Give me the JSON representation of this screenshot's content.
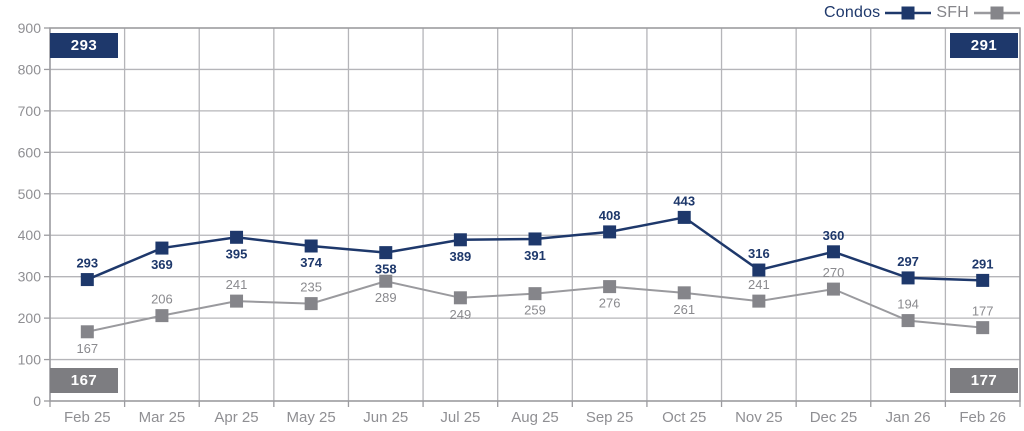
{
  "legend": {
    "position": "top-right",
    "items": [
      {
        "label": "Condos",
        "color": "#1e386b"
      },
      {
        "label": "SFH",
        "color": "#85858a"
      }
    ]
  },
  "badges": {
    "condos_first": {
      "value": "293",
      "color": "#1e386b"
    },
    "condos_last": {
      "value": "291",
      "color": "#1e386b"
    },
    "sfh_first": {
      "value": "167",
      "color": "#7d7d81"
    },
    "sfh_last": {
      "value": "177",
      "color": "#7d7d81"
    }
  },
  "chart_data": {
    "type": "line",
    "title": "",
    "xlabel": "",
    "ylabel": "",
    "categories": [
      "Feb 25",
      "Mar 25",
      "Apr 25",
      "May 25",
      "Jun 25",
      "Jul 25",
      "Aug 25",
      "Sep 25",
      "Oct 25",
      "Nov 25",
      "Dec 25",
      "Jan 26",
      "Feb 26"
    ],
    "series": [
      {
        "name": "Condos",
        "values": [
          293,
          369,
          395,
          374,
          358,
          389,
          391,
          408,
          443,
          316,
          360,
          297,
          291
        ],
        "label_side": [
          "above",
          "below",
          "below",
          "below",
          "below",
          "below",
          "below",
          "above",
          "above",
          "above",
          "above",
          "above",
          "above"
        ],
        "color": "#1e386b",
        "line_color": "#1e386b",
        "label_color": "#1e386b",
        "label_weight": "bold",
        "marker": "square",
        "marker_size": 13,
        "line_width": 2.5
      },
      {
        "name": "SFH",
        "values": [
          167,
          206,
          241,
          235,
          289,
          249,
          259,
          276,
          261,
          241,
          270,
          194,
          177
        ],
        "label_side": [
          "below",
          "above",
          "above",
          "above",
          "below",
          "below",
          "below",
          "below",
          "below",
          "above",
          "above",
          "above",
          "above"
        ],
        "color": "#85858a",
        "line_color": "#9a9a9e",
        "label_color": "#8a8a8e",
        "label_weight": "normal",
        "marker": "square",
        "marker_size": 13,
        "line_width": 2
      }
    ],
    "ylim": [
      0,
      900
    ],
    "ytick_step": 100,
    "grid": true,
    "legend_position": "top-right",
    "axis_text_color": "#8f8f93",
    "grid_color": "#b5b5b9",
    "border_color": "#9b9b9f"
  }
}
